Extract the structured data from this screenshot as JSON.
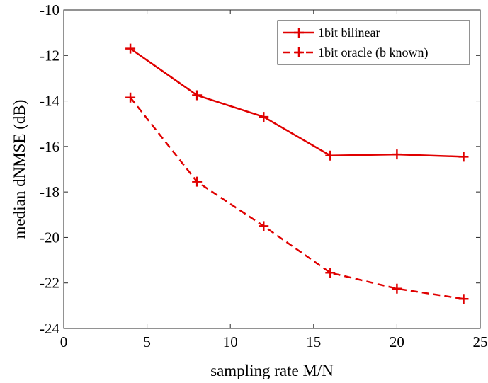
{
  "chart_data": {
    "type": "line",
    "title": "",
    "xlabel": "sampling rate M/N",
    "ylabel": "median dNMSE (dB)",
    "xlim": [
      0,
      25
    ],
    "ylim": [
      -24,
      -10
    ],
    "xticks": [
      "0",
      "5",
      "10",
      "15",
      "20",
      "25"
    ],
    "yticks": [
      "-10",
      "-12",
      "-14",
      "-16",
      "-18",
      "-20",
      "-22",
      "-24"
    ],
    "grid": false,
    "legend_position": "top-right",
    "x": [
      4,
      8,
      12,
      16,
      20,
      24
    ],
    "series": [
      {
        "name": "1bit bilinear",
        "values": [
          -11.7,
          -13.75,
          -14.7,
          -16.4,
          -16.35,
          -16.45
        ],
        "color": "#e00000",
        "line_style": "solid",
        "marker": "plus"
      },
      {
        "name": "1bit oracle (b known)",
        "values": [
          -13.85,
          -17.55,
          -19.5,
          -21.55,
          -22.25,
          -22.7
        ],
        "color": "#e00000",
        "line_style": "dashed",
        "marker": "plus"
      }
    ]
  }
}
